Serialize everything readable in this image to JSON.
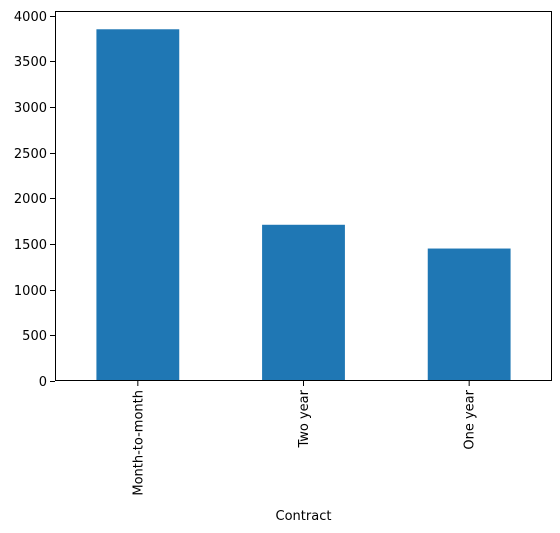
{
  "chart_data": {
    "type": "bar",
    "title": "",
    "xlabel": "Contract",
    "ylabel": "",
    "categories": [
      "Month-to-month",
      "Two year",
      "One year"
    ],
    "values": [
      3850,
      1710,
      1450
    ],
    "ylim": [
      0,
      4050
    ],
    "yticks": [
      0,
      500,
      1000,
      1500,
      2000,
      2500,
      3000,
      3500,
      4000
    ],
    "ytick_labels": [
      "0",
      "500",
      "1000",
      "1500",
      "2000",
      "2500",
      "3000",
      "3500",
      "4000"
    ],
    "bar_color": "#1f77b4",
    "grid": false,
    "legend": "none",
    "xtick_rotation": "vertical"
  }
}
